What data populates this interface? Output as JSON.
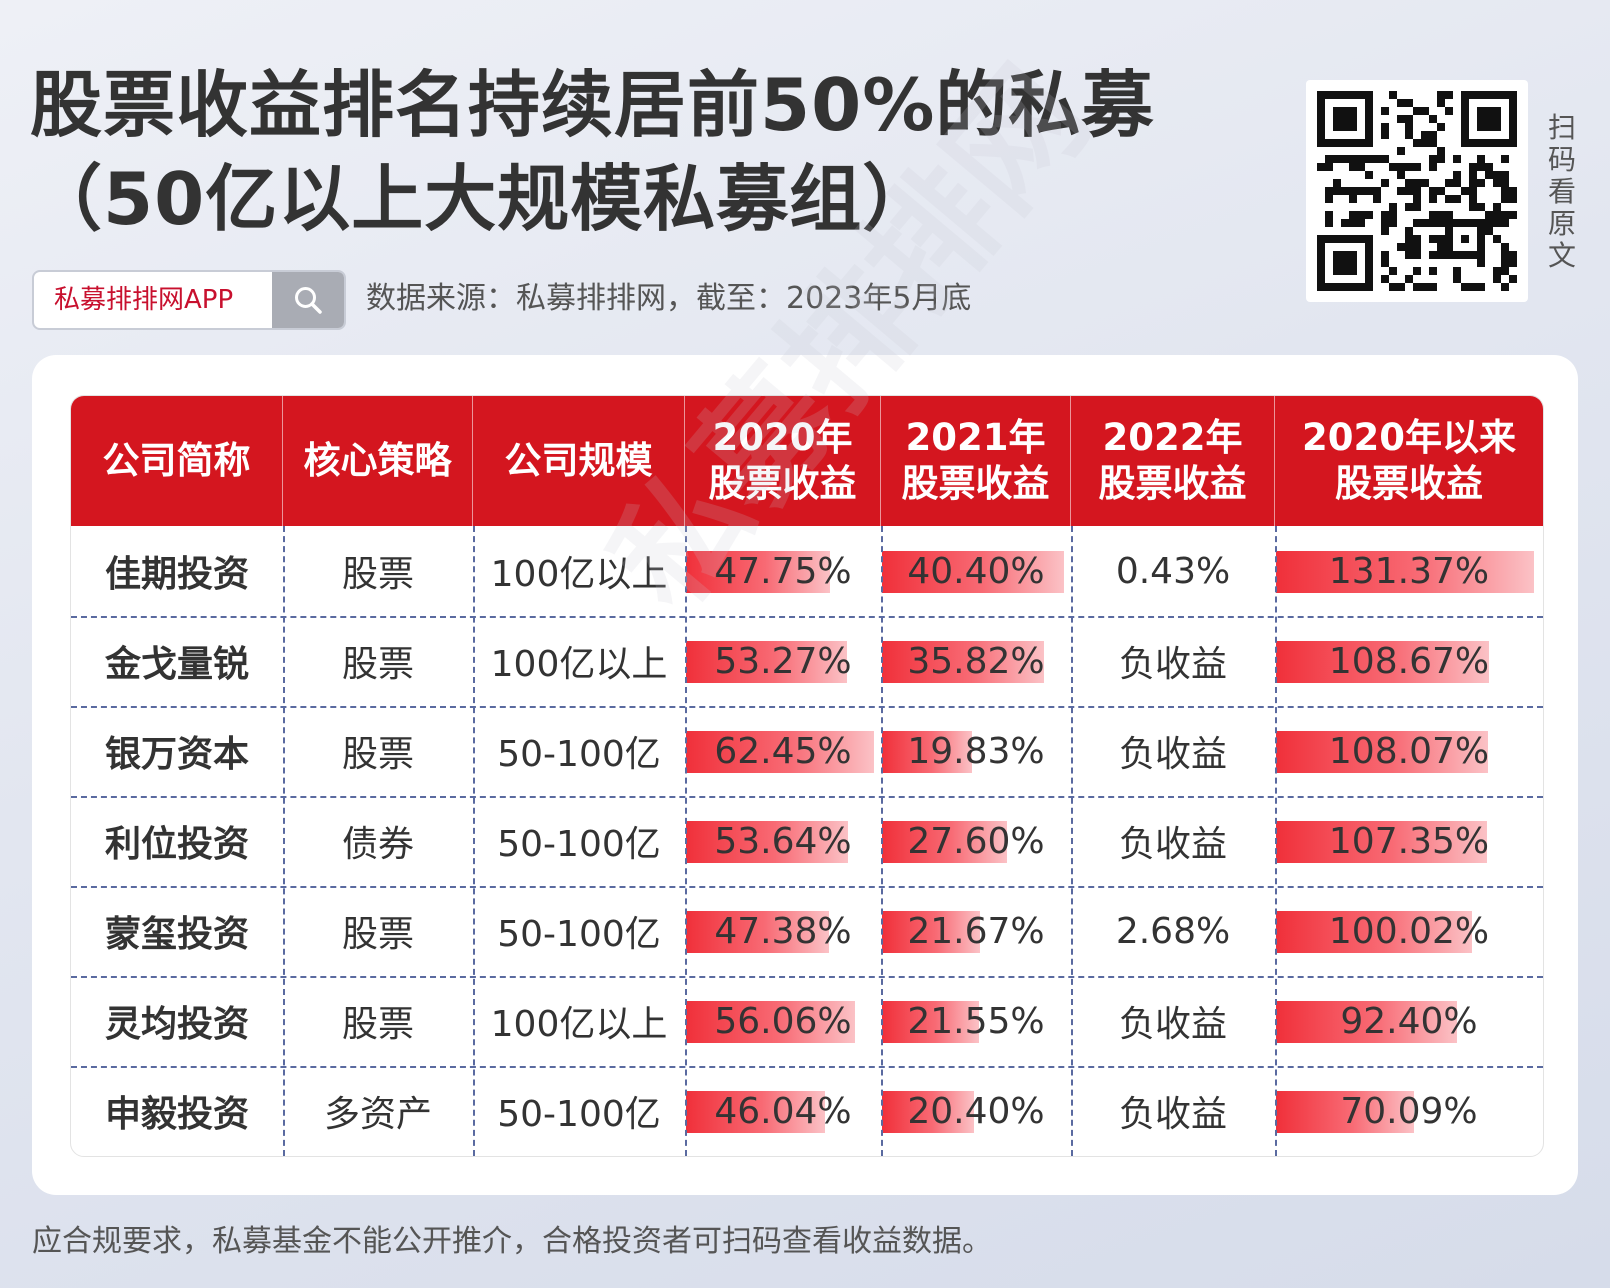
{
  "title": {
    "line1": "股票收益排名持续居前50%的私募",
    "line2": "（50亿以上大规模私募组）"
  },
  "qr": {
    "hint": "扫码看原文"
  },
  "search": {
    "text": "私募排排网APP"
  },
  "source": "数据来源：私募排排网，截至：2023年5月底",
  "table": {
    "headers": [
      [
        "公司简称"
      ],
      [
        "核心策略"
      ],
      [
        "公司规模"
      ],
      [
        "2020年",
        "股票收益"
      ],
      [
        "2021年",
        "股票收益"
      ],
      [
        "2022年",
        "股票收益"
      ],
      [
        "2020年以来",
        "股票收益"
      ]
    ],
    "rows": [
      {
        "name": "佳期投资",
        "strategy": "股票",
        "scale": "100亿以上",
        "r2020": "47.75%",
        "r2021": "40.40%",
        "r2022": "0.43%",
        "rsince": "131.37%"
      },
      {
        "name": "金戈量锐",
        "strategy": "股票",
        "scale": "100亿以上",
        "r2020": "53.27%",
        "r2021": "35.82%",
        "r2022": "负收益",
        "rsince": "108.67%"
      },
      {
        "name": "银万资本",
        "strategy": "股票",
        "scale": "50-100亿",
        "r2020": "62.45%",
        "r2021": "19.83%",
        "r2022": "负收益",
        "rsince": "108.07%"
      },
      {
        "name": "利位投资",
        "strategy": "债券",
        "scale": "50-100亿",
        "r2020": "53.64%",
        "r2021": "27.60%",
        "r2022": "负收益",
        "rsince": "107.35%"
      },
      {
        "name": "蒙玺投资",
        "strategy": "股票",
        "scale": "50-100亿",
        "r2020": "47.38%",
        "r2021": "21.67%",
        "r2022": "2.68%",
        "rsince": "100.02%"
      },
      {
        "name": "灵均投资",
        "strategy": "股票",
        "scale": "100亿以上",
        "r2020": "56.06%",
        "r2021": "21.55%",
        "r2022": "负收益",
        "rsince": "92.40%"
      },
      {
        "name": "申毅投资",
        "strategy": "多资产",
        "scale": "50-100亿",
        "r2020": "46.04%",
        "r2021": "20.40%",
        "r2022": "负收益",
        "rsince": "70.09%"
      }
    ]
  },
  "watermark": "私募排排网",
  "footer": "应合规要求，私募基金不能公开推介，合格投资者可扫码查看收益数据。",
  "colors": {
    "header_red": "#d4161f",
    "bar_red": "#f0303a"
  }
}
